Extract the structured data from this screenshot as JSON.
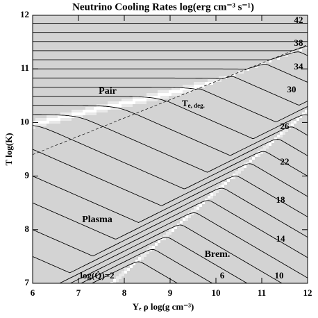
{
  "chart_data": {
    "type": "contour",
    "title": "Neutrino Cooling Rates  log(erg cm⁻³ s⁻¹)",
    "x_label": "Yₑ ρ    log(g cm⁻³)",
    "y_label": "T    log(K)",
    "xlim": [
      6,
      12
    ],
    "xticks": [
      6,
      7,
      8,
      9,
      10,
      11,
      12
    ],
    "ylim": [
      7,
      12
    ],
    "yticks": [
      7,
      8,
      9,
      10,
      11,
      12
    ],
    "levels": [
      2,
      4,
      6,
      8,
      10,
      12,
      14,
      16,
      18,
      20,
      22,
      24,
      26,
      28,
      30,
      32,
      34,
      36,
      38,
      40,
      42
    ],
    "contour_labels": [
      42,
      38,
      34,
      30,
      26,
      22,
      18,
      14,
      10,
      6
    ],
    "lowest_label": "log(Q̇)=2",
    "regions": [
      "Pair",
      "Plasma",
      "Brem."
    ],
    "degeneracy_label": {
      "main": "T",
      "sub": "e, deg."
    }
  }
}
